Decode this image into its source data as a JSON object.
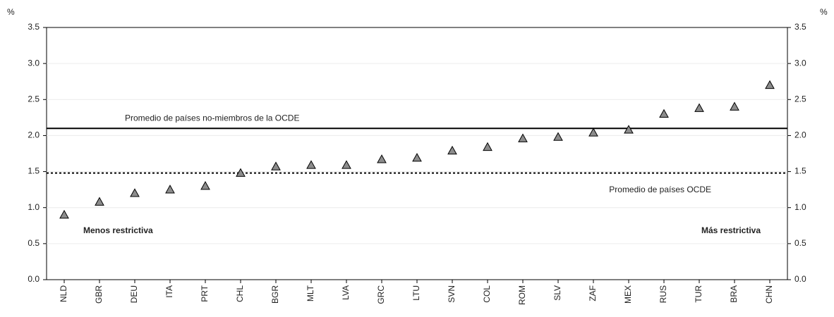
{
  "chart_data": {
    "type": "scatter",
    "y_label": "%",
    "y2_label": "%",
    "categories": [
      "NLD",
      "GBR",
      "DEU",
      "ITA",
      "PRT",
      "CHL",
      "BGR",
      "MLT",
      "LVA",
      "GRC",
      "LTU",
      "SVN",
      "COL",
      "ROM",
      "SLV",
      "ZAF",
      "MEX",
      "RUS",
      "TUR",
      "BRA",
      "CHN"
    ],
    "series": [
      {
        "color": "#8c8c8c",
        "values": [
          0.9,
          1.08,
          1.2,
          1.25,
          1.3,
          1.48,
          1.57,
          1.59,
          1.59,
          1.67,
          1.69,
          1.79,
          1.84,
          1.96,
          1.98,
          2.04,
          2.08,
          2.3,
          2.38,
          2.4,
          2.7
        ]
      }
    ],
    "ylim": [
      0,
      3.5
    ],
    "yticks": [
      {
        "value": 0,
        "label": "0.0"
      },
      0.5,
      {
        "value": 1,
        "label": "1.0"
      },
      1.5,
      {
        "value": 2,
        "label": "2.0"
      },
      2.5,
      {
        "value": 3,
        "label": "3.0"
      },
      3.5
    ],
    "y2lim": [
      0,
      3.5
    ],
    "y2ticks": [
      {
        "value": 0,
        "label": "0.0"
      },
      0.5,
      {
        "value": 1,
        "label": "1.0"
      },
      1.5,
      {
        "value": 2,
        "label": "2.0"
      },
      2.5,
      {
        "value": 3,
        "label": "3.0"
      },
      3.5
    ],
    "grid": true,
    "reference_lines": [
      {
        "label": "Promedio de países no-miembros de la OCDE",
        "value": 2.1,
        "style": "solid"
      },
      {
        "label": "Promedio de países OCDE",
        "value": 1.48,
        "style": "dotted"
      }
    ],
    "annotations": [
      "Menos restrictiva",
      "Más restrictiva"
    ]
  }
}
